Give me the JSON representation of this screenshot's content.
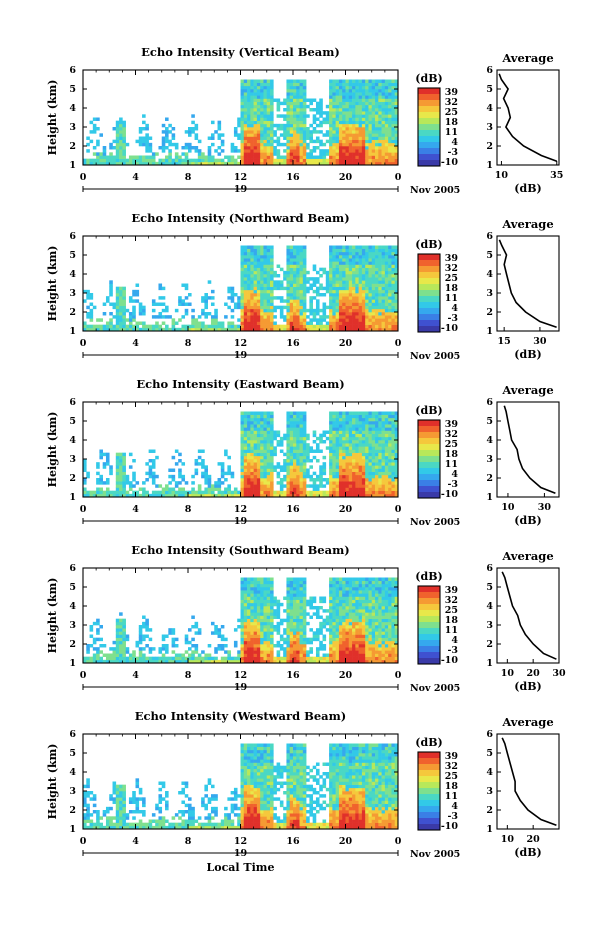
{
  "colors": {
    "colorbar": [
      "#3a3aa8",
      "#3f51d0",
      "#3a7fe6",
      "#35a8ee",
      "#32c9e8",
      "#4ad8c4",
      "#7ee08e",
      "#b8e85a",
      "#e8e84a",
      "#f5c83c",
      "#f59a33",
      "#f0622d",
      "#e0302a"
    ]
  },
  "chart_data": [
    {
      "type": "heatmap",
      "title": "Echo Intensity (Vertical Beam)",
      "ylabel": "Height (km)",
      "ylim": [
        1,
        6
      ],
      "yticks": [
        "1",
        "2",
        "3",
        "4",
        "5",
        "6"
      ],
      "xlim": [
        0,
        24
      ],
      "xticks": [
        "0",
        "4",
        "8",
        "12",
        "16",
        "20",
        "0"
      ],
      "date_day": "19",
      "date_label": "Nov 2005",
      "colorbar": {
        "label": "(dB)",
        "ticks": [
          "39",
          "32",
          "25",
          "18",
          "11",
          "4",
          "-3",
          "-10"
        ],
        "range": [
          -10,
          39
        ]
      },
      "precip_periods_hours": [
        [
          12,
          14.5
        ],
        [
          15.5,
          17
        ],
        [
          18.8,
          24
        ]
      ],
      "average_profile": {
        "title": "Average",
        "xlabel": "(dB)",
        "xticks": [
          "10",
          "35"
        ],
        "xlim": [
          8,
          36
        ],
        "height_km": [
          1.2,
          1.5,
          2.0,
          2.5,
          3.0,
          3.5,
          4.0,
          4.5,
          5.0,
          5.5,
          5.8
        ],
        "db": [
          35,
          28,
          20,
          15,
          12,
          14,
          13,
          11,
          13,
          10,
          9
        ]
      }
    },
    {
      "type": "heatmap",
      "title": "Echo Intensity (Northward Beam)",
      "ylabel": "Height (km)",
      "ylim": [
        1,
        6
      ],
      "yticks": [
        "1",
        "2",
        "3",
        "4",
        "5",
        "6"
      ],
      "xlim": [
        0,
        24
      ],
      "xticks": [
        "0",
        "4",
        "8",
        "12",
        "16",
        "20",
        "0"
      ],
      "date_day": "19",
      "date_label": "Nov 2005",
      "colorbar": {
        "label": "(dB)",
        "ticks": [
          "39",
          "32",
          "25",
          "18",
          "11",
          "4",
          "-3",
          "-10"
        ],
        "range": [
          -10,
          39
        ]
      },
      "precip_periods_hours": [
        [
          12,
          14.5
        ],
        [
          15.5,
          17
        ],
        [
          18.8,
          24
        ]
      ],
      "average_profile": {
        "title": "Average",
        "xlabel": "(dB)",
        "xticks": [
          "15",
          "30"
        ],
        "xlim": [
          12,
          38
        ],
        "height_km": [
          1.2,
          1.5,
          2.0,
          2.5,
          3.0,
          3.5,
          4.0,
          4.5,
          5.0,
          5.5,
          5.8
        ],
        "db": [
          37,
          30,
          24,
          20,
          18,
          17,
          16,
          15,
          16,
          14,
          13
        ]
      }
    },
    {
      "type": "heatmap",
      "title": "Echo Intensity (Eastward Beam)",
      "ylabel": "Height (km)",
      "ylim": [
        1,
        6
      ],
      "yticks": [
        "1",
        "2",
        "3",
        "4",
        "5",
        "6"
      ],
      "xlim": [
        0,
        24
      ],
      "xticks": [
        "0",
        "4",
        "8",
        "12",
        "16",
        "20",
        "0"
      ],
      "date_day": "19",
      "date_label": "Nov 2005",
      "colorbar": {
        "label": "(dB)",
        "ticks": [
          "39",
          "32",
          "25",
          "18",
          "11",
          "4",
          "-3",
          "-10"
        ],
        "range": [
          -10,
          39
        ]
      },
      "precip_periods_hours": [
        [
          12,
          14.5
        ],
        [
          15.5,
          17
        ],
        [
          18.8,
          24
        ]
      ],
      "average_profile": {
        "title": "Average",
        "xlabel": "(dB)",
        "xticks": [
          "10",
          "30"
        ],
        "xlim": [
          4,
          38
        ],
        "height_km": [
          1.2,
          1.5,
          2.0,
          2.5,
          3.0,
          3.5,
          4.0,
          4.5,
          5.0,
          5.5,
          5.8
        ],
        "db": [
          36,
          28,
          22,
          18,
          16,
          15,
          12,
          11,
          10,
          9,
          8
        ]
      }
    },
    {
      "type": "heatmap",
      "title": "Echo Intensity (Southward Beam)",
      "ylabel": "Height (km)",
      "ylim": [
        1,
        6
      ],
      "yticks": [
        "1",
        "2",
        "3",
        "4",
        "5",
        "6"
      ],
      "xlim": [
        0,
        24
      ],
      "xticks": [
        "0",
        "4",
        "8",
        "12",
        "16",
        "20",
        "0"
      ],
      "date_day": "19",
      "date_label": "Nov 2005",
      "colorbar": {
        "label": "(dB)",
        "ticks": [
          "39",
          "32",
          "25",
          "18",
          "11",
          "4",
          "-3",
          "-10"
        ],
        "range": [
          -10,
          39
        ]
      },
      "precip_periods_hours": [
        [
          12,
          14.5
        ],
        [
          15.5,
          17
        ],
        [
          18.8,
          24
        ]
      ],
      "average_profile": {
        "title": "Average",
        "xlabel": "(dB)",
        "xticks": [
          "10",
          "20",
          "30"
        ],
        "xlim": [
          6,
          30
        ],
        "height_km": [
          1.2,
          1.5,
          2.0,
          2.5,
          3.0,
          3.5,
          4.0,
          4.5,
          5.0,
          5.5,
          5.8
        ],
        "db": [
          29,
          24,
          20,
          17,
          15,
          14,
          12,
          11,
          10,
          9,
          8
        ]
      }
    },
    {
      "type": "heatmap",
      "title": "Echo Intensity (Westward Beam)",
      "ylabel": "Height (km)",
      "ylim": [
        1,
        6
      ],
      "yticks": [
        "1",
        "2",
        "3",
        "4",
        "5",
        "6"
      ],
      "xlim": [
        0,
        24
      ],
      "xticks": [
        "0",
        "4",
        "8",
        "12",
        "16",
        "20",
        "0"
      ],
      "date_day": "19",
      "date_label": "Nov 2005",
      "xlabel": "Local Time",
      "colorbar": {
        "label": "(dB)",
        "ticks": [
          "39",
          "32",
          "25",
          "18",
          "11",
          "4",
          "-3",
          "-10"
        ],
        "range": [
          -10,
          39
        ]
      },
      "precip_periods_hours": [
        [
          12,
          14.5
        ],
        [
          15.5,
          17
        ],
        [
          18.8,
          24
        ]
      ],
      "average_profile": {
        "title": "Average",
        "xlabel": "(dB)",
        "xticks": [
          "10",
          "20"
        ],
        "xlim": [
          6,
          30
        ],
        "height_km": [
          1.2,
          1.5,
          2.0,
          2.5,
          3.0,
          3.5,
          4.0,
          4.5,
          5.0,
          5.5,
          5.8
        ],
        "db": [
          29,
          23,
          18,
          15,
          13,
          13,
          12,
          11,
          10,
          9,
          8
        ]
      }
    }
  ]
}
